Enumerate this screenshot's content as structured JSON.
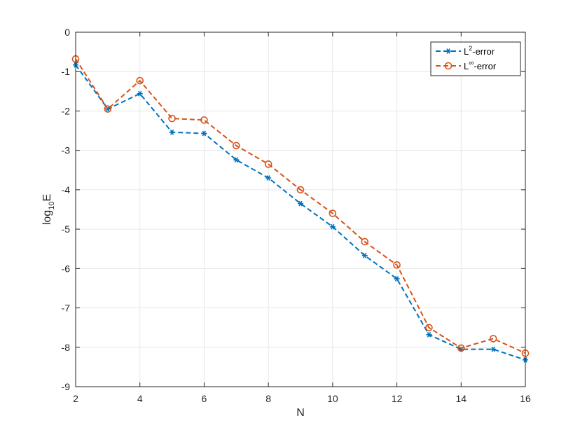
{
  "chart_data": {
    "type": "line",
    "xlabel": "N",
    "ylabel": {
      "base": "log",
      "sub": "10",
      "tail": "E"
    },
    "xlim": [
      2,
      16
    ],
    "ylim": [
      -9,
      0
    ],
    "xticks": [
      "2",
      "4",
      "6",
      "8",
      "10",
      "12",
      "14",
      "16"
    ],
    "yticks": [
      "0",
      "-1",
      "-2",
      "-3",
      "-4",
      "-5",
      "-6",
      "-7",
      "-8",
      "-9"
    ],
    "grid": true,
    "legend_position": "top-right",
    "x": [
      2,
      3,
      4,
      5,
      6,
      7,
      8,
      9,
      10,
      11,
      12,
      13,
      14,
      15,
      16
    ],
    "series": [
      {
        "name": "L2-error",
        "legend": {
          "base": "L",
          "sup": "2",
          "tail": "-error"
        },
        "color": "#0072BD",
        "marker": "asterisk",
        "line_style": "dashed",
        "values": [
          -0.83,
          -1.95,
          -1.56,
          -2.54,
          -2.57,
          -3.24,
          -3.7,
          -4.35,
          -4.94,
          -5.67,
          -6.26,
          -7.68,
          -8.05,
          -8.05,
          -8.32
        ]
      },
      {
        "name": "L∞-error",
        "legend": {
          "base": "L",
          "sup": "∞",
          "tail": "-error"
        },
        "color": "#D95319",
        "marker": "circle",
        "line_style": "dashed",
        "values": [
          -0.68,
          -1.95,
          -1.23,
          -2.19,
          -2.23,
          -2.88,
          -3.35,
          -4.0,
          -4.6,
          -5.32,
          -5.91,
          -7.5,
          -8.02,
          -7.78,
          -8.15
        ]
      }
    ]
  }
}
